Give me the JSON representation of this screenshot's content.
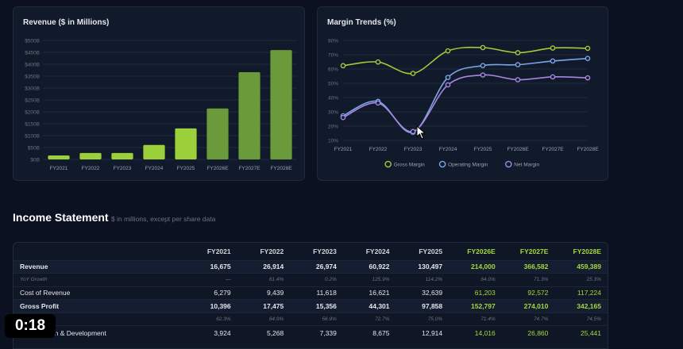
{
  "chart_data": [
    {
      "type": "bar",
      "title": "Revenue ($ in Millions)",
      "categories": [
        "FY2021",
        "FY2022",
        "FY2023",
        "FY2024",
        "FY2025",
        "FY2026E",
        "FY2027E",
        "FY2028E"
      ],
      "values": [
        16.7,
        26.9,
        27.0,
        60.9,
        130.5,
        214.0,
        366.6,
        459.4
      ],
      "estimated_from_index": 5,
      "yticks": [
        "$0B",
        "$50B",
        "$100B",
        "$150B",
        "$200B",
        "$250B",
        "$300B",
        "$350B",
        "$400B",
        "$450B",
        "$500B"
      ],
      "ylim": [
        0,
        500
      ],
      "grid": true,
      "colors": {
        "actual": "#9bd03b",
        "estimate": "#6a9a3a"
      }
    },
    {
      "type": "line",
      "title": "Margin Trends (%)",
      "categories": [
        "FY2021",
        "FY2022",
        "FY2023",
        "FY2024",
        "FY2025",
        "FY2026E",
        "FY2027E",
        "FY2028E"
      ],
      "yticks": [
        "10%",
        "20%",
        "30%",
        "40%",
        "50%",
        "60%",
        "70%",
        "80%"
      ],
      "ylim": [
        10,
        80
      ],
      "grid": true,
      "legend_position": "bottom",
      "series": [
        {
          "name": "Gross Margin",
          "values": [
            62.3,
            64.9,
            56.9,
            72.7,
            75.0,
            71.4,
            74.7,
            74.5
          ],
          "color": "#a3c93a"
        },
        {
          "name": "Operating Margin",
          "values": [
            27.2,
            37.3,
            15.7,
            54.1,
            62.4,
            63.0,
            65.6,
            67.4
          ],
          "color": "#7aa6e6"
        },
        {
          "name": "Net Margin",
          "values": [
            26.0,
            36.2,
            16.2,
            48.9,
            55.8,
            52.5,
            54.5,
            53.8
          ],
          "color": "#a985e0"
        }
      ]
    }
  ],
  "income_statement": {
    "title": "Income Statement",
    "subtitle": "$ in millions, except per share data",
    "columns": [
      "FY2021",
      "FY2022",
      "FY2023",
      "FY2024",
      "FY2025",
      "FY2026E",
      "FY2027E",
      "FY2028E"
    ],
    "rows": [
      {
        "label": "Revenue",
        "values": [
          "16,675",
          "26,914",
          "26,974",
          "60,922",
          "130,497",
          "214,000",
          "366,582",
          "459,389"
        ]
      },
      {
        "label": "YoY Growth",
        "values": [
          "—",
          "61.4%",
          "0.2%",
          "125.9%",
          "114.2%",
          "64.0%",
          "71.3%",
          "25.3%"
        ]
      },
      {
        "label": "Cost of Revenue",
        "values": [
          "6,279",
          "9,439",
          "11,618",
          "16,621",
          "32,639",
          "61,203",
          "92,572",
          "117,224"
        ]
      },
      {
        "label": "Gross Profit",
        "values": [
          "10,396",
          "17,475",
          "15,356",
          "44,301",
          "97,858",
          "152,797",
          "274,010",
          "342,165"
        ]
      },
      {
        "label": "",
        "values": [
          "62.3%",
          "64.9%",
          "56.9%",
          "72.7%",
          "75.0%",
          "71.4%",
          "74.7%",
          "74.5%"
        ]
      },
      {
        "label": "Research & Development",
        "values": [
          "3,924",
          "5,268",
          "7,339",
          "8,675",
          "12,914",
          "14,016",
          "26,860",
          "25,441"
        ]
      }
    ]
  },
  "video_timer": "0:18"
}
